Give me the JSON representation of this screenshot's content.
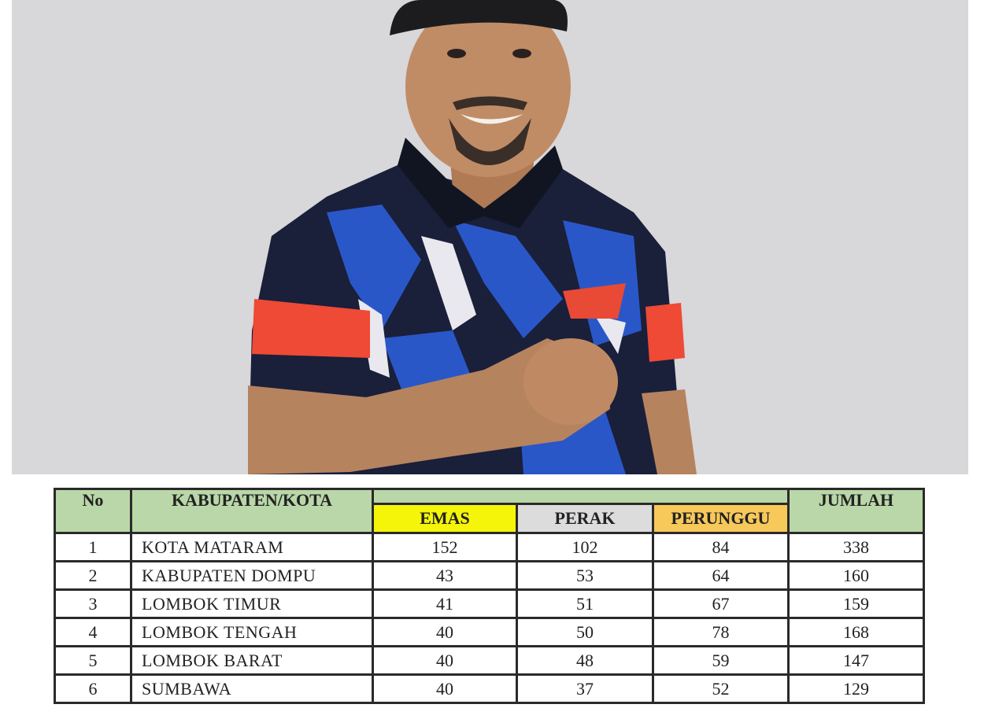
{
  "photo": {
    "description_icon": "portrait-photo",
    "background_color": "#d8d7d9"
  },
  "table": {
    "headers": {
      "no": "No",
      "region": "KABUPATEN/KOTA",
      "gold": "EMAS",
      "silver": "PERAK",
      "bronze": "PERUNGGU",
      "total": "JUMLAH"
    },
    "colors": {
      "header": "#b9d7a8",
      "gold": "#f5f50a",
      "silver": "#dcdcdc",
      "bronze": "#f7c85a"
    },
    "rows": [
      {
        "no": "1",
        "region": "KOTA MATARAM",
        "gold": "152",
        "silver": "102",
        "bronze": "84",
        "total": "338"
      },
      {
        "no": "2",
        "region": "KABUPATEN DOMPU",
        "gold": "43",
        "silver": "53",
        "bronze": "64",
        "total": "160"
      },
      {
        "no": "3",
        "region": "LOMBOK TIMUR",
        "gold": "41",
        "silver": "51",
        "bronze": "67",
        "total": "159"
      },
      {
        "no": "4",
        "region": "LOMBOK TENGAH",
        "gold": "40",
        "silver": "50",
        "bronze": "78",
        "total": "168"
      },
      {
        "no": "5",
        "region": "LOMBOK BARAT",
        "gold": "40",
        "silver": "48",
        "bronze": "59",
        "total": "147"
      },
      {
        "no": "6",
        "region": "SUMBAWA",
        "gold": "40",
        "silver": "37",
        "bronze": "52",
        "total": "129"
      }
    ]
  }
}
